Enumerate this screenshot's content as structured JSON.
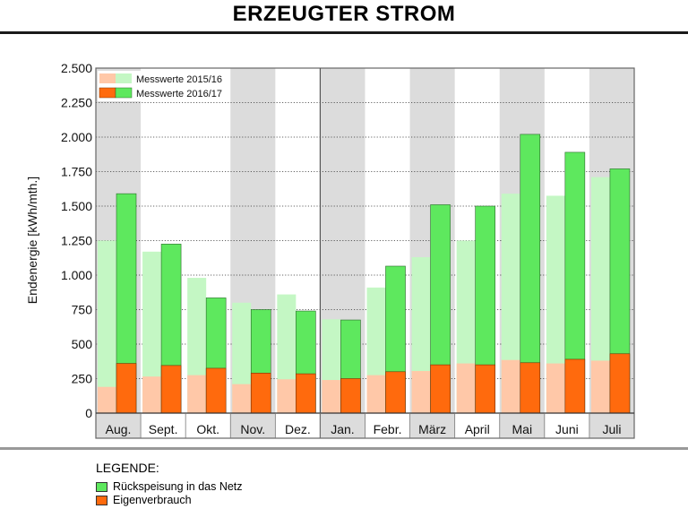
{
  "page": {
    "title": "ERZEUGTER STROM"
  },
  "colors": {
    "green_current": "#5ee85e",
    "green_previous": "#c4f7c4",
    "orange_current": "#ff6a0d",
    "orange_previous": "#ffc8a8",
    "column_shade": "#dcdcdc"
  },
  "chart_data": {
    "type": "bar",
    "title": "ERZEUGTER STROM",
    "ylabel": "Endenergie [kWh/mth.]",
    "xlabel": "",
    "ylim": [
      0,
      2500
    ],
    "yticks": [
      {
        "value": 0,
        "label": "0"
      },
      {
        "value": 250,
        "label": "250"
      },
      {
        "value": 500,
        "label": "500"
      },
      {
        "value": 750,
        "label": "750"
      },
      {
        "value": 1000,
        "label": "1.000"
      },
      {
        "value": 1250,
        "label": "1.250"
      },
      {
        "value": 1500,
        "label": "1.500"
      },
      {
        "value": 1750,
        "label": "1.750"
      },
      {
        "value": 2000,
        "label": "2.000"
      },
      {
        "value": 2250,
        "label": "2.250"
      },
      {
        "value": 2500,
        "label": "2.500"
      }
    ],
    "grid": true,
    "categories": [
      "Aug.",
      "Sept.",
      "Okt.",
      "Nov.",
      "Dez.",
      "Jan.",
      "Febr.",
      "März",
      "April",
      "Mai",
      "Juni",
      "Juli"
    ],
    "shaded_columns": [
      0,
      3,
      5,
      7,
      9,
      11
    ],
    "year_divider_after": 4,
    "series": [
      {
        "name": "Messwerte 2015/16",
        "component": "Eigenverbrauch",
        "values": [
          190,
          265,
          275,
          210,
          245,
          240,
          275,
          305,
          360,
          385,
          360,
          380
        ]
      },
      {
        "name": "Messwerte 2015/16",
        "component": "Gesamt",
        "values": [
          1250,
          1170,
          980,
          800,
          860,
          680,
          910,
          1130,
          1250,
          1590,
          1575,
          1710
        ]
      },
      {
        "name": "Messwerte 2016/17",
        "component": "Eigenverbrauch",
        "values": [
          360,
          345,
          325,
          290,
          285,
          250,
          300,
          350,
          350,
          365,
          390,
          430
        ]
      },
      {
        "name": "Messwerte 2016/17",
        "component": "Gesamt",
        "values": [
          1590,
          1225,
          835,
          750,
          740,
          675,
          1065,
          1510,
          1500,
          2020,
          1890,
          1770
        ]
      }
    ],
    "inset_legend": [
      {
        "label": "Messwerte 2015/16",
        "variant": "previous"
      },
      {
        "label": "Messwerte 2016/17",
        "variant": "current"
      }
    ]
  },
  "legend": {
    "title": "LEGENDE:",
    "items": [
      {
        "label": "Rückspeisung in das Netz",
        "color": "#5ee85e"
      },
      {
        "label": "Eigenverbrauch",
        "color": "#ff6a0d"
      }
    ]
  }
}
